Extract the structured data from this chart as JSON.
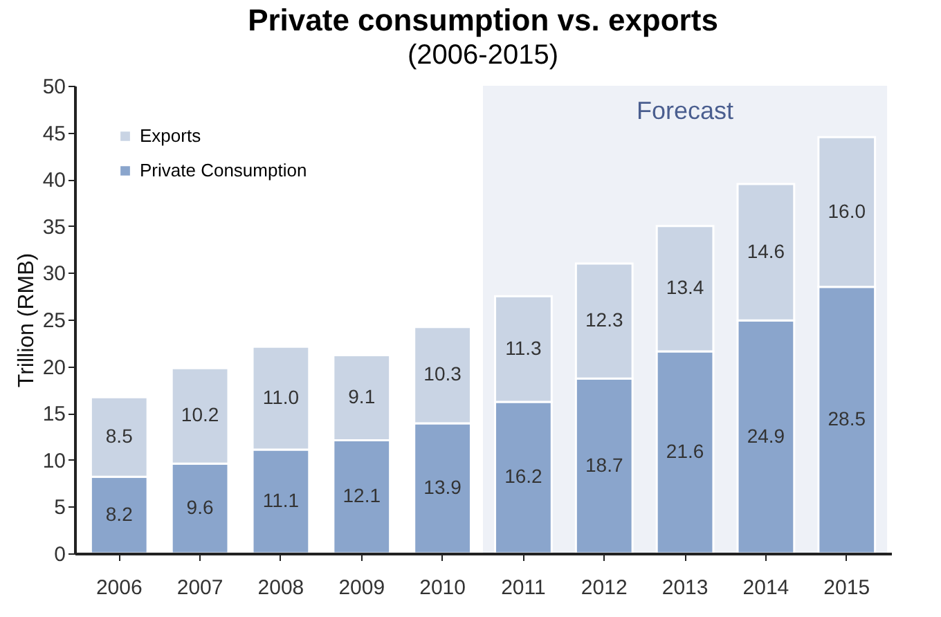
{
  "chart_data": {
    "type": "bar",
    "title": "Private consumption vs. exports",
    "subtitle": "(2006-2015)",
    "ylabel": "Trillion (RMB)",
    "categories": [
      "2006",
      "2007",
      "2008",
      "2009",
      "2010",
      "2011",
      "2012",
      "2013",
      "2014",
      "2015"
    ],
    "series": [
      {
        "name": "Private Consumption",
        "color": "#8aa5cc",
        "values": [
          8.2,
          9.6,
          11.1,
          12.1,
          13.9,
          16.2,
          18.7,
          21.6,
          24.9,
          28.5
        ],
        "value_labels": [
          "8.2",
          "9.6",
          "11.1",
          "12.1",
          "13.9",
          "16.2",
          "18.7",
          "21.6",
          "24.9",
          "28.5"
        ]
      },
      {
        "name": "Exports",
        "color": "#c9d4e4",
        "values": [
          8.5,
          10.2,
          11.0,
          9.1,
          10.3,
          11.3,
          12.3,
          13.4,
          14.6,
          16.0
        ],
        "value_labels": [
          "8.5",
          "10.2",
          "11.0",
          "9.1",
          "10.3",
          "11.3",
          "12.3",
          "13.4",
          "14.6",
          "16.0"
        ]
      }
    ],
    "stacked": true,
    "legend": "top left",
    "grid": false,
    "ylim": [
      0,
      50
    ],
    "yticks": [
      0,
      5,
      10,
      15,
      20,
      25,
      30,
      35,
      40,
      45,
      50
    ],
    "bands": [
      {
        "axis": "x",
        "from": "2011",
        "to": "2015",
        "label": "Forecast",
        "color": "#eef1f7"
      }
    ]
  }
}
